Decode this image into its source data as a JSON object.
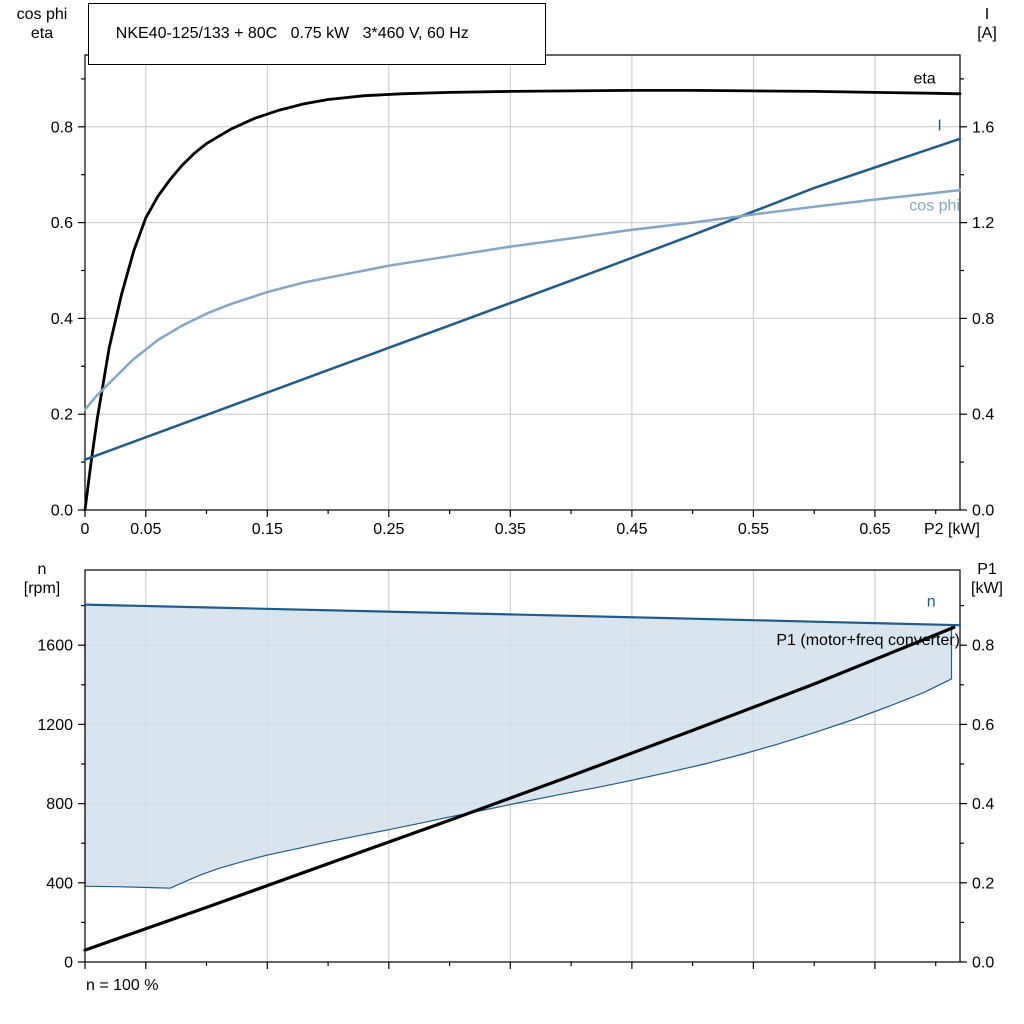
{
  "header": {
    "title": "NKE40-125/133 + 80C   0.75 kW   3*460 V, 60 Hz"
  },
  "colors": {
    "black": "#000000",
    "dark_blue": "#1d5c8c",
    "light_blue": "#84a7c7",
    "area_fill": "#cfdeea",
    "grid": "#c8c8c8"
  },
  "chart_data": [
    {
      "type": "line",
      "x_axis": {
        "label": "P2 [kW]",
        "range": [
          0,
          0.72
        ],
        "tick_values": [
          0,
          0.05,
          0.15,
          0.25,
          0.35,
          0.45,
          0.55,
          0.65
        ],
        "tick_labels": [
          "0",
          "0.05",
          "0.15",
          "0.25",
          "0.35",
          "0.45",
          "0.55",
          "0.65"
        ],
        "minor_tick_values": [
          0.1,
          0.2,
          0.3,
          0.4,
          0.5,
          0.6,
          0.7
        ],
        "grid_values": [
          0.05,
          0.15,
          0.25,
          0.35,
          0.45,
          0.55,
          0.65
        ]
      },
      "left_axis": {
        "title": [
          "cos phi",
          "eta"
        ],
        "range": [
          0,
          0.95
        ],
        "tick_values": [
          0,
          0.2,
          0.4,
          0.6,
          0.8
        ],
        "tick_labels": [
          "0.0",
          "0.2",
          "0.4",
          "0.6",
          "0.8"
        ],
        "minor_tick_values": [
          0.1,
          0.3,
          0.5,
          0.7,
          0.9
        ],
        "grid_values": [
          0.2,
          0.4,
          0.6,
          0.8
        ]
      },
      "right_axis": {
        "title": [
          "I",
          "[A]"
        ],
        "range": [
          0,
          1.9
        ],
        "tick_values": [
          0,
          0.4,
          0.8,
          1.2,
          1.6
        ],
        "tick_labels": [
          "0.0",
          "0.4",
          "0.8",
          "1.2",
          "1.6"
        ],
        "minor_tick_values": [
          0.2,
          0.6,
          1.0,
          1.4,
          1.8
        ]
      },
      "series": [
        {
          "name": "eta",
          "label": "eta",
          "axis": "left",
          "color": "black",
          "width": 2.8,
          "label_pos": {
            "x": 0.7,
            "y": 0.89,
            "axis": "left",
            "anchor": "end"
          },
          "points": [
            [
              0,
              0
            ],
            [
              0.005,
              0.1
            ],
            [
              0.01,
              0.19
            ],
            [
              0.02,
              0.34
            ],
            [
              0.03,
              0.45
            ],
            [
              0.04,
              0.54
            ],
            [
              0.05,
              0.61
            ],
            [
              0.06,
              0.655
            ],
            [
              0.07,
              0.69
            ],
            [
              0.08,
              0.72
            ],
            [
              0.09,
              0.745
            ],
            [
              0.1,
              0.765
            ],
            [
              0.12,
              0.795
            ],
            [
              0.14,
              0.818
            ],
            [
              0.16,
              0.835
            ],
            [
              0.18,
              0.848
            ],
            [
              0.2,
              0.857
            ],
            [
              0.23,
              0.865
            ],
            [
              0.26,
              0.869
            ],
            [
              0.3,
              0.872
            ],
            [
              0.35,
              0.874
            ],
            [
              0.4,
              0.875
            ],
            [
              0.45,
              0.876
            ],
            [
              0.5,
              0.876
            ],
            [
              0.55,
              0.875
            ],
            [
              0.6,
              0.874
            ],
            [
              0.65,
              0.872
            ],
            [
              0.7,
              0.87
            ],
            [
              0.72,
              0.869
            ]
          ]
        },
        {
          "name": "I",
          "label": "I",
          "axis": "right",
          "color": "dark_blue",
          "width": 2.5,
          "label_pos": {
            "x": 0.705,
            "y": 1.585,
            "axis": "right",
            "anchor": "end"
          },
          "points": [
            [
              0,
              0.21
            ],
            [
              0.1,
              0.397
            ],
            [
              0.2,
              0.584
            ],
            [
              0.3,
              0.771
            ],
            [
              0.4,
              0.958
            ],
            [
              0.5,
              1.148
            ],
            [
              0.6,
              1.345
            ],
            [
              0.72,
              1.55
            ]
          ]
        },
        {
          "name": "cos phi",
          "label": "cos phi",
          "axis": "left",
          "color": "light_blue",
          "width": 2.5,
          "label_pos": {
            "x": 0.72,
            "y": 0.625,
            "axis": "left",
            "anchor": "end"
          },
          "points": [
            [
              0,
              0.21
            ],
            [
              0.01,
              0.24
            ],
            [
              0.02,
              0.265
            ],
            [
              0.03,
              0.29
            ],
            [
              0.04,
              0.315
            ],
            [
              0.05,
              0.335
            ],
            [
              0.06,
              0.355
            ],
            [
              0.08,
              0.385
            ],
            [
              0.1,
              0.41
            ],
            [
              0.12,
              0.43
            ],
            [
              0.15,
              0.455
            ],
            [
              0.18,
              0.475
            ],
            [
              0.21,
              0.49
            ],
            [
              0.25,
              0.51
            ],
            [
              0.3,
              0.53
            ],
            [
              0.35,
              0.55
            ],
            [
              0.4,
              0.567
            ],
            [
              0.45,
              0.585
            ],
            [
              0.5,
              0.6
            ],
            [
              0.55,
              0.617
            ],
            [
              0.6,
              0.633
            ],
            [
              0.65,
              0.648
            ],
            [
              0.7,
              0.662
            ],
            [
              0.72,
              0.668
            ]
          ]
        }
      ]
    },
    {
      "type": "line+area",
      "note": "n = 100 %",
      "x_axis": {
        "label": "",
        "range": [
          0,
          0.72
        ],
        "tick_values": [
          0,
          0.05,
          0.15,
          0.25,
          0.35,
          0.45,
          0.55,
          0.65
        ],
        "tick_labels": [],
        "minor_tick_values": [
          0.1,
          0.2,
          0.3,
          0.4,
          0.5,
          0.6,
          0.7
        ],
        "grid_values": [
          0.05,
          0.15,
          0.25,
          0.35,
          0.45,
          0.55,
          0.65
        ]
      },
      "left_axis": {
        "title": [
          "n",
          "[rpm]"
        ],
        "range": [
          0,
          1980
        ],
        "tick_values": [
          0,
          400,
          800,
          1200,
          1600
        ],
        "tick_labels": [
          "0",
          "400",
          "800",
          "1200",
          "1600"
        ],
        "minor_tick_values": [
          200,
          600,
          1000,
          1400,
          1800
        ],
        "grid_values": [
          400,
          800,
          1200,
          1600
        ]
      },
      "right_axis": {
        "title": [
          "P1",
          "[kW]"
        ],
        "range": [
          0,
          0.99
        ],
        "tick_values": [
          0,
          0.2,
          0.4,
          0.6,
          0.8
        ],
        "tick_labels": [
          "0.0",
          "0.2",
          "0.4",
          "0.6",
          "0.8"
        ],
        "minor_tick_values": [
          0.1,
          0.3,
          0.5,
          0.7,
          0.9
        ]
      },
      "area": {
        "name": "speed-control-range",
        "axis": "left",
        "fill": "area_fill",
        "fill_opacity": 0.8,
        "stroke": "dark_blue",
        "lower_points": [
          [
            0,
            383
          ],
          [
            0.03,
            380
          ],
          [
            0.055,
            376
          ],
          [
            0.07,
            373
          ],
          [
            0.08,
            400
          ],
          [
            0.095,
            440
          ],
          [
            0.11,
            473
          ],
          [
            0.13,
            508
          ],
          [
            0.15,
            540
          ],
          [
            0.175,
            573
          ],
          [
            0.2,
            607
          ],
          [
            0.225,
            638
          ],
          [
            0.25,
            668
          ],
          [
            0.275,
            700
          ],
          [
            0.3,
            733
          ],
          [
            0.33,
            770
          ],
          [
            0.36,
            808
          ],
          [
            0.39,
            845
          ],
          [
            0.42,
            880
          ],
          [
            0.45,
            918
          ],
          [
            0.48,
            958
          ],
          [
            0.51,
            1000
          ],
          [
            0.54,
            1048
          ],
          [
            0.57,
            1100
          ],
          [
            0.6,
            1158
          ],
          [
            0.63,
            1220
          ],
          [
            0.66,
            1288
          ],
          [
            0.69,
            1360
          ],
          [
            0.713,
            1430
          ]
        ],
        "upper_points": [
          [
            0,
            1805
          ],
          [
            0.12,
            1788
          ],
          [
            0.24,
            1771
          ],
          [
            0.36,
            1754
          ],
          [
            0.48,
            1737
          ],
          [
            0.6,
            1719
          ],
          [
            0.713,
            1702
          ]
        ]
      },
      "series": [
        {
          "name": "n",
          "label": "n",
          "axis": "left",
          "color": "dark_blue",
          "width": 2.2,
          "label_pos": {
            "x": 0.7,
            "y": 1795,
            "axis": "left",
            "anchor": "end"
          },
          "points": [
            [
              0,
              1805
            ],
            [
              0.12,
              1788
            ],
            [
              0.24,
              1771
            ],
            [
              0.36,
              1754
            ],
            [
              0.48,
              1737
            ],
            [
              0.6,
              1719
            ],
            [
              0.72,
              1701
            ]
          ]
        },
        {
          "name": "P1",
          "label": "P1 (motor+freq converter)",
          "axis": "right",
          "color": "black",
          "width": 3.2,
          "label_pos": {
            "x": 0.72,
            "y": 0.8,
            "axis": "right",
            "anchor": "end"
          },
          "points": [
            [
              0,
              0.03
            ],
            [
              0.1,
              0.138
            ],
            [
              0.2,
              0.248
            ],
            [
              0.3,
              0.358
            ],
            [
              0.4,
              0.47
            ],
            [
              0.5,
              0.585
            ],
            [
              0.6,
              0.702
            ],
            [
              0.715,
              0.845
            ]
          ]
        }
      ]
    }
  ]
}
